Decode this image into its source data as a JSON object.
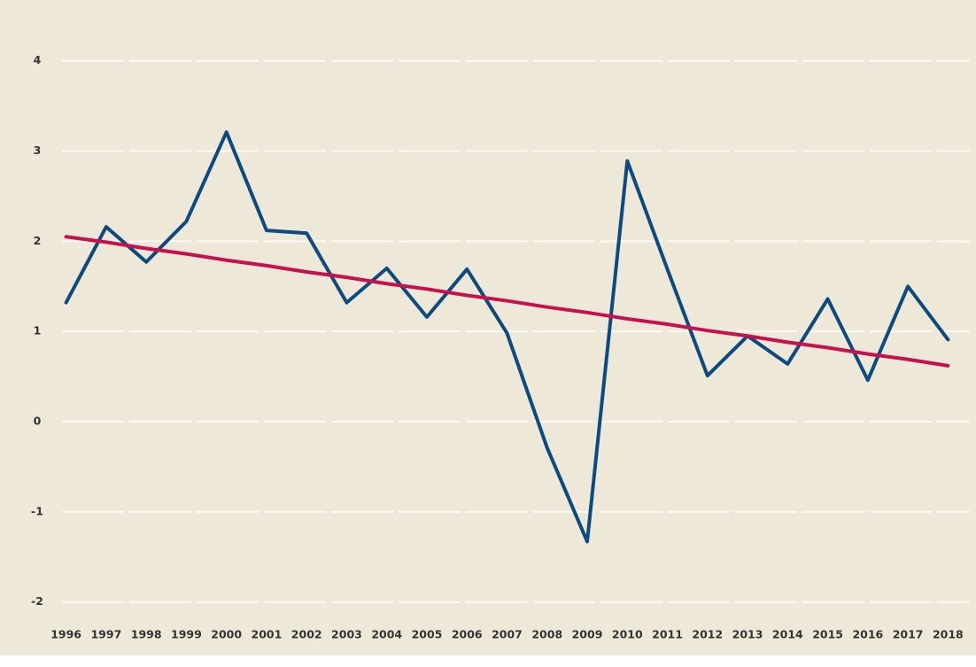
{
  "chart_data": {
    "type": "line",
    "categories": [
      "1996",
      "1997",
      "1998",
      "1999",
      "2000",
      "2001",
      "2002",
      "2003",
      "2004",
      "2005",
      "2006",
      "2007",
      "2008",
      "2009",
      "2010",
      "2011",
      "2012",
      "2013",
      "2014",
      "2015",
      "2016",
      "2017",
      "2018"
    ],
    "series": [
      {
        "color": "#0d4a80",
        "values": [
          1.32,
          2.16,
          1.77,
          2.22,
          3.21,
          2.12,
          2.09,
          1.32,
          1.7,
          1.16,
          1.69,
          0.98,
          -0.29,
          -1.33,
          2.89,
          1.69,
          0.51,
          0.95,
          0.64,
          1.36,
          0.46,
          1.5,
          0.91
        ]
      },
      {
        "color": "#c8104f",
        "values": [
          2.05,
          1.99,
          1.92,
          1.86,
          1.79,
          1.73,
          1.66,
          1.6,
          1.53,
          1.47,
          1.4,
          1.34,
          1.27,
          1.21,
          1.14,
          1.08,
          1.01,
          0.95,
          0.88,
          0.82,
          0.75,
          0.69,
          0.62
        ]
      }
    ],
    "ylim": [
      -2.2,
      4.4
    ],
    "yticks": [
      -2,
      -1,
      0,
      1,
      2,
      3,
      4
    ],
    "grid": true,
    "background": "#ede8d8"
  }
}
